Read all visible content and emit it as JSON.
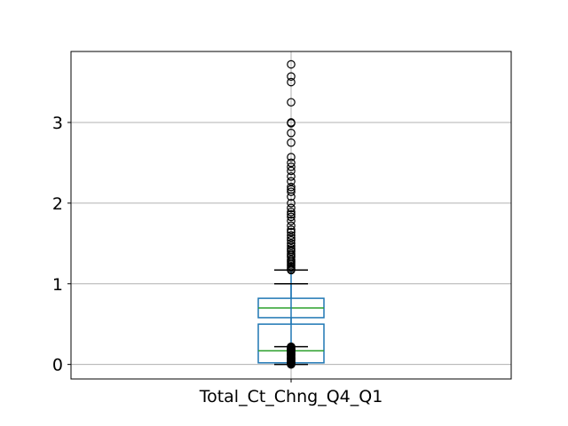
{
  "chart_data": {
    "type": "box",
    "title": "",
    "xlabel": "",
    "ylabel": "",
    "ylim": [
      -0.18,
      3.88
    ],
    "grid": true,
    "categories": [
      "Total_Ct_Chng_Q4_Q1"
    ],
    "y_ticks": [
      0,
      1,
      2,
      3
    ],
    "y_tick_labels": [
      "0",
      "1",
      "2",
      "3"
    ],
    "boxes": [
      {
        "name": "Total_Ct_Chng_Q4_Q1",
        "q1": 0.58,
        "median": 0.7,
        "q3": 0.82,
        "whisker_low": 0.22,
        "whisker_high": 1.17
      },
      {
        "name": "Total_Ct_Chng_Q4_Q1",
        "q1": 0.02,
        "median": 0.17,
        "q3": 0.5,
        "whisker_low": 0.0,
        "whisker_high": 1.0
      }
    ],
    "outliers": [
      3.72,
      3.57,
      3.5,
      3.25,
      3.0,
      2.99,
      2.87,
      2.75,
      2.57,
      2.5,
      2.45,
      2.4,
      2.33,
      2.27,
      2.2,
      2.17,
      2.14,
      2.08,
      2.0,
      1.94,
      1.89,
      1.86,
      1.83,
      1.78,
      1.72,
      1.67,
      1.64,
      1.6,
      1.57,
      1.54,
      1.5,
      1.47,
      1.44,
      1.42,
      1.4,
      1.37,
      1.35,
      1.33,
      1.3,
      1.28,
      1.26,
      1.24,
      1.22,
      1.2,
      1.18,
      1.17,
      0.22,
      0.21,
      0.2,
      0.19,
      0.18,
      0.17,
      0.16,
      0.15,
      0.14,
      0.13,
      0.12,
      0.11,
      0.1,
      0.09,
      0.08,
      0.07,
      0.06,
      0.05,
      0.04,
      0.03,
      0.02,
      0.01,
      0.0
    ],
    "colors": {
      "box": "#1f77b4",
      "median": "#2ca02c",
      "whisker": "#1f77b4",
      "cap": "#000000",
      "flier": "#000000",
      "grid": "#b0b0b0",
      "axes": "#000000"
    }
  }
}
